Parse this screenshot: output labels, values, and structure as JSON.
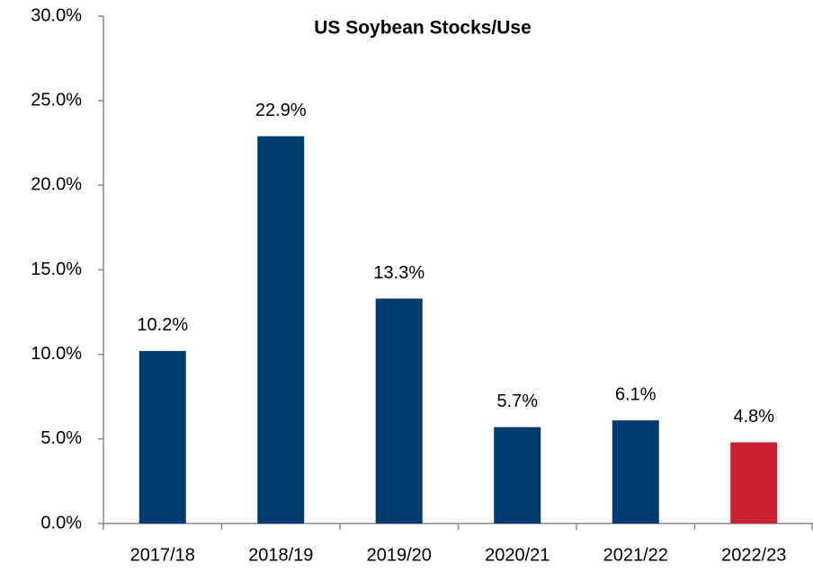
{
  "chart_data": {
    "type": "bar",
    "title": "US Soybean Stocks/Use",
    "categories": [
      "2017/18",
      "2018/19",
      "2019/20",
      "2020/21",
      "2021/22",
      "2022/23"
    ],
    "values": [
      10.2,
      22.9,
      13.3,
      5.7,
      6.1,
      4.8
    ],
    "value_labels": [
      "10.2%",
      "22.9%",
      "13.3%",
      "5.7%",
      "6.1%",
      "4.8%"
    ],
    "colors": [
      "#003b6f",
      "#003b6f",
      "#003b6f",
      "#003b6f",
      "#003b6f",
      "#cc2131"
    ],
    "ylim": [
      0,
      30
    ],
    "yticks": [
      {
        "value": 0,
        "label": "0.0%"
      },
      {
        "value": 5,
        "label": "5.0%"
      },
      {
        "value": 10,
        "label": "10.0%"
      },
      {
        "value": 15,
        "label": "15.0%"
      },
      {
        "value": 20,
        "label": "20.0%"
      },
      {
        "value": 25,
        "label": "25.0%"
      },
      {
        "value": 30,
        "label": "30.0%"
      }
    ],
    "grid": false
  }
}
